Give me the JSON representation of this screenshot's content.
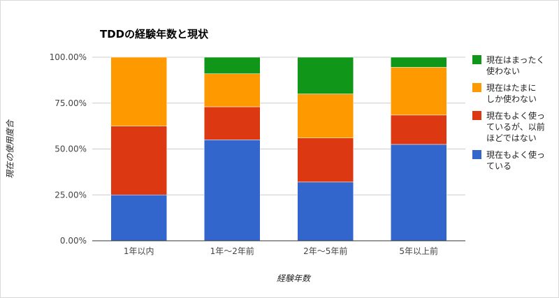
{
  "chart_data": {
    "type": "bar",
    "stacked": true,
    "title": "TDDの経験年数と現状",
    "xlabel": "経験年数",
    "ylabel": "現在の使用度合",
    "categories": [
      "1年以内",
      "1年〜2年前",
      "2年〜5年前",
      "5年以上前"
    ],
    "ylim": [
      0,
      100
    ],
    "yticks": [
      "0.00%",
      "25.00%",
      "50.00%",
      "75.00%",
      "100.00%"
    ],
    "grid": true,
    "legend_position": "right",
    "series": [
      {
        "name": "現在もよく使っている",
        "color": "#3366cc",
        "values": [
          25,
          55,
          32,
          52.5
        ]
      },
      {
        "name": "現在もよく使っているが、以前ほどではない",
        "color": "#dc3912",
        "values": [
          37.5,
          18,
          24,
          16
        ]
      },
      {
        "name": "現在はたまにしか使わない",
        "color": "#ff9900",
        "values": [
          37.5,
          18,
          24,
          26
        ]
      },
      {
        "name": "現在はまったく使わない",
        "color": "#109618",
        "values": [
          0,
          9,
          20,
          5.5
        ]
      }
    ],
    "legend": [
      {
        "lines": [
          "現在はまったく",
          "使わない"
        ],
        "color": "#109618"
      },
      {
        "lines": [
          "現在はたまに",
          "しか使わない"
        ],
        "color": "#ff9900"
      },
      {
        "lines": [
          "現在もよく使っ",
          "ているが、以前",
          "ほどではない"
        ],
        "color": "#dc3912"
      },
      {
        "lines": [
          "現在もよく使っ",
          "ている"
        ],
        "color": "#3366cc"
      }
    ]
  }
}
